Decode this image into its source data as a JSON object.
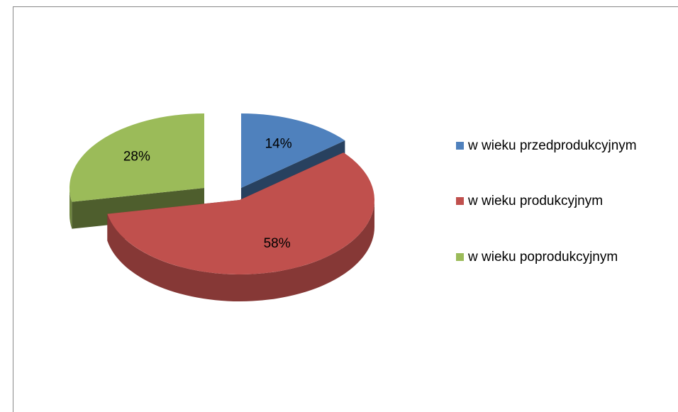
{
  "chart_data": {
    "type": "pie3d",
    "categories": [
      "w wieku przedprodukcyjnym",
      "w wieku produkcyjnym",
      "w wieku poprodukcyjnym"
    ],
    "values": [
      14,
      58,
      28
    ],
    "value_labels": [
      "14%",
      "58%",
      "28%"
    ],
    "colors": [
      "#4f81bd",
      "#c0504d",
      "#9bbb59"
    ],
    "legend": "right"
  }
}
